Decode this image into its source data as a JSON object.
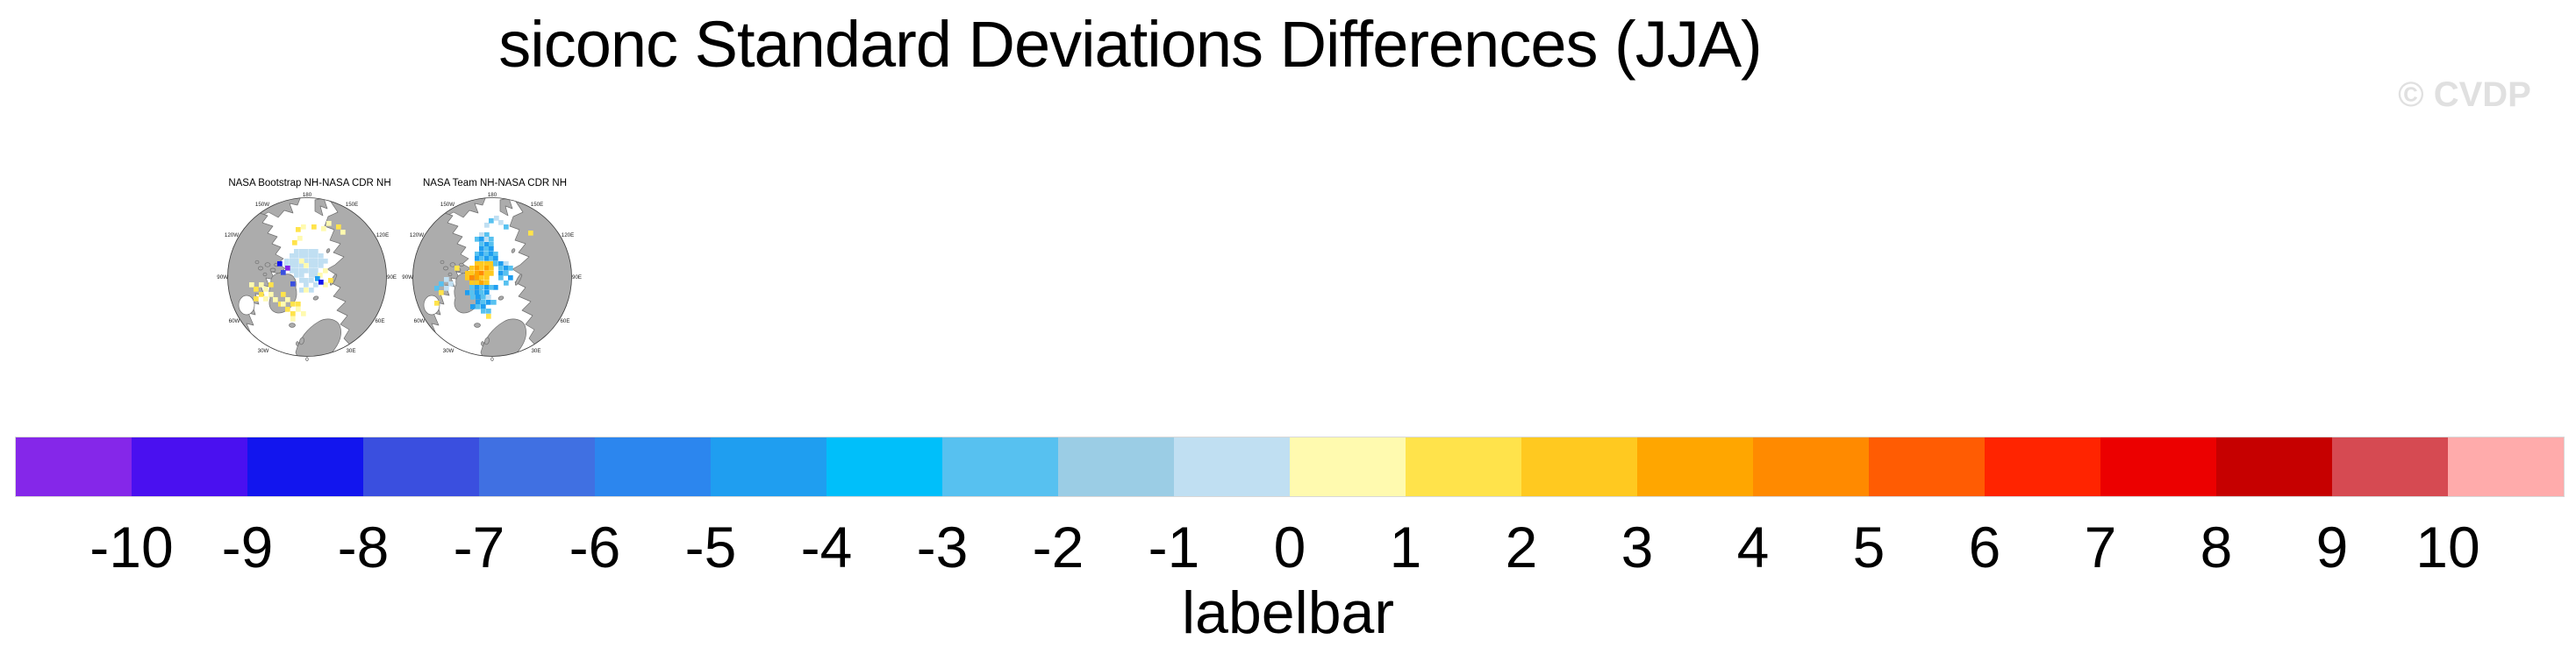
{
  "title": "siconc Standard Deviations Differences (JJA)",
  "watermark": "© CVDP",
  "maps": [
    {
      "title": "NASA Bootstrap NH-NASA CDR NH",
      "lon_labels": [
        "180",
        "150W",
        "150E",
        "120W",
        "120E",
        "90W",
        "90E",
        "60W",
        "60E",
        "30W",
        "30E",
        "0"
      ],
      "cells": [
        [
          88,
          66,
          10
        ],
        [
          94,
          66,
          10
        ],
        [
          99,
          66,
          10
        ],
        [
          105,
          66,
          10
        ],
        [
          110,
          66,
          10
        ],
        [
          83,
          71,
          10
        ],
        [
          88,
          71,
          10
        ],
        [
          94,
          71,
          10
        ],
        [
          99,
          71,
          10
        ],
        [
          105,
          71,
          10
        ],
        [
          110,
          71,
          10
        ],
        [
          116,
          71,
          10
        ],
        [
          77,
          77,
          10
        ],
        [
          83,
          77,
          10
        ],
        [
          88,
          77,
          10
        ],
        [
          99,
          77,
          10
        ],
        [
          105,
          77,
          10
        ],
        [
          110,
          77,
          10
        ],
        [
          116,
          77,
          10
        ],
        [
          121,
          77,
          10
        ],
        [
          77,
          82,
          10
        ],
        [
          83,
          82,
          10
        ],
        [
          88,
          82,
          10
        ],
        [
          94,
          82,
          10
        ],
        [
          105,
          82,
          10
        ],
        [
          110,
          82,
          10
        ],
        [
          116,
          82,
          10
        ],
        [
          83,
          88,
          10
        ],
        [
          88,
          88,
          10
        ],
        [
          94,
          88,
          10
        ],
        [
          99,
          88,
          10
        ],
        [
          105,
          88,
          10
        ],
        [
          110,
          88,
          10
        ],
        [
          88,
          93,
          10
        ],
        [
          94,
          93,
          10
        ],
        [
          105,
          93,
          10
        ],
        [
          110,
          93,
          10
        ],
        [
          94,
          99,
          10
        ],
        [
          99,
          99,
          10
        ],
        [
          105,
          99,
          10
        ],
        [
          99,
          104,
          10
        ],
        [
          105,
          110,
          10
        ],
        [
          94,
          110,
          10
        ],
        [
          110,
          104,
          10
        ],
        [
          90,
          41,
          12
        ],
        [
          96,
          38,
          11
        ],
        [
          108,
          38,
          12
        ],
        [
          119,
          40,
          11
        ],
        [
          136,
          38,
          12
        ],
        [
          141,
          44,
          11
        ],
        [
          125,
          34,
          11
        ],
        [
          92,
          51,
          11
        ],
        [
          86,
          56,
          12
        ],
        [
          94,
          77,
          11
        ],
        [
          99,
          82,
          11
        ],
        [
          115,
          93,
          11
        ],
        [
          99,
          110,
          11
        ],
        [
          121,
          88,
          11
        ],
        [
          127,
          99,
          12
        ],
        [
          121,
          104,
          11
        ],
        [
          37,
          104,
          11
        ],
        [
          42,
          109,
          12
        ],
        [
          48,
          104,
          11
        ],
        [
          48,
          115,
          12
        ],
        [
          53,
          109,
          11
        ],
        [
          59,
          115,
          11
        ],
        [
          42,
          120,
          12
        ],
        [
          59,
          104,
          12
        ],
        [
          64,
          121,
          11
        ],
        [
          70,
          126,
          12
        ],
        [
          53,
          120,
          11
        ],
        [
          73,
          115,
          12
        ],
        [
          78,
          121,
          11
        ],
        [
          84,
          126,
          12
        ],
        [
          73,
          126,
          11
        ],
        [
          78,
          132,
          12
        ],
        [
          90,
          132,
          11
        ],
        [
          84,
          137,
          12
        ],
        [
          96,
          137,
          11
        ],
        [
          84,
          143,
          11
        ],
        [
          90,
          126,
          12
        ],
        [
          69,
          80,
          2
        ],
        [
          78,
          85,
          0
        ],
        [
          84,
          103,
          3
        ],
        [
          112,
          97,
          6
        ],
        [
          116,
          101,
          2
        ],
        [
          73,
          90,
          3
        ]
      ]
    },
    {
      "title": "NASA Team NH-NASA CDR NH",
      "lon_labels": [
        "180",
        "150W",
        "150E",
        "120W",
        "120E",
        "90W",
        "90E",
        "60W",
        "60E",
        "30W",
        "30E",
        "0"
      ],
      "cells": [
        [
          83,
          80,
          13
        ],
        [
          88,
          80,
          13
        ],
        [
          94,
          80,
          13
        ],
        [
          99,
          80,
          13
        ],
        [
          77,
          85,
          13
        ],
        [
          83,
          85,
          14
        ],
        [
          88,
          85,
          13
        ],
        [
          94,
          85,
          14
        ],
        [
          99,
          85,
          13
        ],
        [
          72,
          91,
          13
        ],
        [
          77,
          91,
          13
        ],
        [
          83,
          91,
          14
        ],
        [
          88,
          91,
          15
        ],
        [
          94,
          91,
          13
        ],
        [
          99,
          91,
          13
        ],
        [
          72,
          96,
          13
        ],
        [
          77,
          96,
          15
        ],
        [
          83,
          96,
          14
        ],
        [
          88,
          96,
          13
        ],
        [
          94,
          96,
          13
        ],
        [
          77,
          102,
          13
        ],
        [
          83,
          102,
          13
        ],
        [
          88,
          102,
          14
        ],
        [
          94,
          102,
          13
        ],
        [
          88,
          47,
          10
        ],
        [
          94,
          47,
          8
        ],
        [
          83,
          52,
          8
        ],
        [
          88,
          52,
          6
        ],
        [
          94,
          52,
          10
        ],
        [
          99,
          52,
          8
        ],
        [
          88,
          58,
          8
        ],
        [
          94,
          58,
          6
        ],
        [
          99,
          58,
          8
        ],
        [
          88,
          63,
          6
        ],
        [
          94,
          63,
          8
        ],
        [
          99,
          63,
          6
        ],
        [
          83,
          69,
          8
        ],
        [
          88,
          69,
          6
        ],
        [
          94,
          69,
          8
        ],
        [
          99,
          69,
          6
        ],
        [
          104,
          69,
          8
        ],
        [
          83,
          74,
          6
        ],
        [
          88,
          74,
          8
        ],
        [
          94,
          74,
          6
        ],
        [
          99,
          74,
          8
        ],
        [
          104,
          74,
          6
        ],
        [
          94,
          36,
          10
        ],
        [
          99,
          31,
          8
        ],
        [
          110,
          33,
          10
        ],
        [
          116,
          38,
          8
        ],
        [
          144,
          45,
          12
        ],
        [
          105,
          28,
          10
        ],
        [
          104,
          80,
          8
        ],
        [
          110,
          80,
          6
        ],
        [
          116,
          80,
          10
        ],
        [
          110,
          85,
          8
        ],
        [
          116,
          85,
          6
        ],
        [
          121,
          85,
          8
        ],
        [
          110,
          91,
          6
        ],
        [
          116,
          91,
          8
        ],
        [
          121,
          96,
          6
        ],
        [
          116,
          102,
          8
        ],
        [
          110,
          96,
          8
        ],
        [
          104,
          107,
          6
        ],
        [
          77,
          107,
          8
        ],
        [
          83,
          107,
          6
        ],
        [
          88,
          107,
          8
        ],
        [
          94,
          107,
          6
        ],
        [
          99,
          107,
          8
        ],
        [
          72,
          113,
          6
        ],
        [
          77,
          113,
          8
        ],
        [
          83,
          113,
          6
        ],
        [
          88,
          113,
          8
        ],
        [
          94,
          113,
          6
        ],
        [
          78,
          118,
          8
        ],
        [
          84,
          118,
          6
        ],
        [
          90,
          118,
          8
        ],
        [
          96,
          118,
          10
        ],
        [
          84,
          124,
          6
        ],
        [
          90,
          124,
          8
        ],
        [
          96,
          124,
          6
        ],
        [
          102,
          124,
          8
        ],
        [
          78,
          129,
          6
        ],
        [
          84,
          129,
          8
        ],
        [
          90,
          129,
          6
        ],
        [
          96,
          134,
          8
        ],
        [
          90,
          134,
          8
        ],
        [
          48,
          98,
          10
        ],
        [
          42,
          103,
          8
        ],
        [
          48,
          108,
          10
        ],
        [
          37,
          108,
          8
        ],
        [
          53,
          103,
          10
        ],
        [
          42,
          113,
          12
        ],
        [
          37,
          125,
          12
        ],
        [
          96,
          140,
          12
        ],
        [
          60,
          85,
          12
        ]
      ]
    }
  ],
  "colorbar": {
    "label": "labelbar",
    "tick_labels": [
      "-10",
      "-9",
      "-8",
      "-7",
      "-6",
      "-5",
      "-4",
      "-3",
      "-2",
      "-1",
      "0",
      "1",
      "2",
      "3",
      "4",
      "5",
      "6",
      "7",
      "8",
      "9",
      "10"
    ],
    "colors": [
      "#8527E9",
      "#4A10F0",
      "#1215EE",
      "#3A4FDF",
      "#4070E2",
      "#2C86EE",
      "#1F9EF0",
      "#00BFFA",
      "#57C1F0",
      "#9BCDE5",
      "#C0DFF2",
      "#FFFAAF",
      "#FFE34B",
      "#FFC920",
      "#FFA600",
      "#FF8A00",
      "#FF5C03",
      "#FF2400",
      "#EC0000",
      "#C60000",
      "#D64A52",
      "#FFABAB"
    ],
    "land_color": "#ACACAC"
  },
  "chart_data": {
    "type": "heatmap",
    "title": "siconc Standard Deviations Differences (JJA)",
    "variable": "siconc",
    "season": "JJA",
    "panels": [
      "NASA Bootstrap NH-NASA CDR NH",
      "NASA Team NH-NASA CDR NH"
    ],
    "projection_note": "two north-polar stereographic difference maps, 180 at top, 0 at bottom",
    "colorbar_label": "labelbar",
    "levels": [
      -10,
      -9,
      -8,
      -7,
      -6,
      -5,
      -4,
      -3,
      -2,
      -1,
      0,
      1,
      2,
      3,
      4,
      5,
      6,
      7,
      8,
      9,
      10
    ],
    "colors": [
      "#8527E9",
      "#4A10F0",
      "#1215EE",
      "#3A4FDF",
      "#4070E2",
      "#2C86EE",
      "#1F9EF0",
      "#00BFFA",
      "#57C1F0",
      "#9BCDE5",
      "#C0DFF2",
      "#FFFAAF",
      "#FFE34B",
      "#FFC920",
      "#FFA600",
      "#FF8A00",
      "#FF5C03",
      "#FF2400",
      "#EC0000",
      "#C60000",
      "#D64A52",
      "#FFABAB"
    ],
    "legend_position": "bottom full-width labelbar",
    "watermark": "© CVDP"
  }
}
